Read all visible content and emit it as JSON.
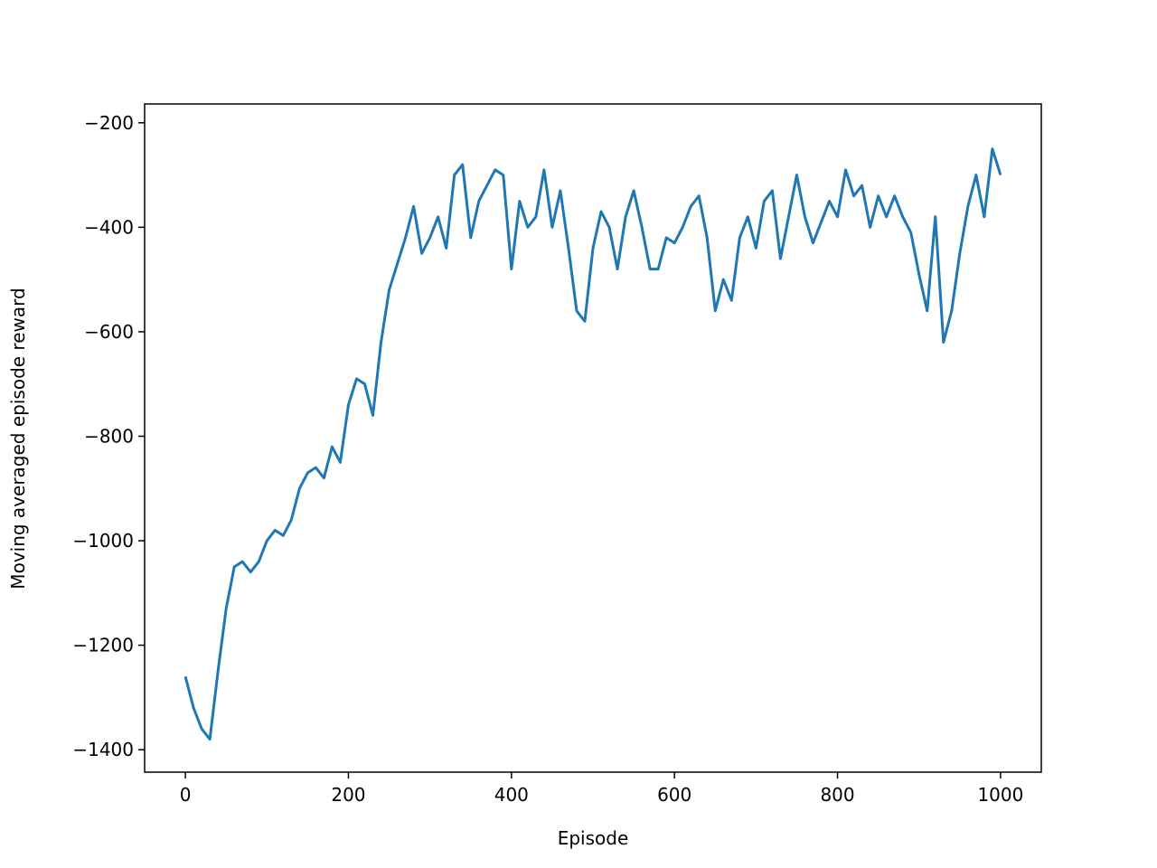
{
  "chart_data": {
    "type": "line",
    "x_label": "Episode",
    "y_label": "Moving averaged episode reward",
    "x": [
      0,
      10,
      20,
      30,
      40,
      50,
      60,
      70,
      80,
      90,
      100,
      110,
      120,
      130,
      140,
      150,
      160,
      170,
      180,
      190,
      200,
      210,
      220,
      230,
      240,
      250,
      260,
      270,
      280,
      290,
      300,
      310,
      320,
      330,
      340,
      350,
      360,
      370,
      380,
      390,
      400,
      410,
      420,
      430,
      440,
      450,
      460,
      470,
      480,
      490,
      500,
      510,
      520,
      530,
      540,
      550,
      560,
      570,
      580,
      590,
      600,
      610,
      620,
      630,
      640,
      650,
      660,
      670,
      680,
      690,
      700,
      710,
      720,
      730,
      740,
      750,
      760,
      770,
      780,
      790,
      800,
      810,
      820,
      830,
      840,
      850,
      860,
      870,
      880,
      890,
      900,
      910,
      920,
      930,
      940,
      950,
      960,
      970,
      980,
      990,
      1000
    ],
    "series": [
      {
        "name": "reward",
        "color": "#1f77b4",
        "values": [
          -1260,
          -1320,
          -1360,
          -1380,
          -1250,
          -1130,
          -1050,
          -1040,
          -1060,
          -1040,
          -1000,
          -980,
          -990,
          -960,
          -900,
          -870,
          -860,
          -880,
          -820,
          -850,
          -740,
          -690,
          -700,
          -760,
          -620,
          -520,
          -470,
          -420,
          -360,
          -450,
          -420,
          -380,
          -440,
          -300,
          -280,
          -420,
          -350,
          -320,
          -290,
          -300,
          -480,
          -350,
          -400,
          -380,
          -290,
          -400,
          -330,
          -440,
          -560,
          -580,
          -440,
          -370,
          -400,
          -480,
          -380,
          -330,
          -400,
          -480,
          -480,
          -420,
          -430,
          -400,
          -360,
          -340,
          -420,
          -560,
          -500,
          -540,
          -420,
          -380,
          -440,
          -350,
          -330,
          -460,
          -380,
          -300,
          -380,
          -430,
          -390,
          -350,
          -380,
          -290,
          -340,
          -320,
          -400,
          -340,
          -380,
          -340,
          -380,
          -410,
          -490,
          -560,
          -380,
          -620,
          -560,
          -450,
          -360,
          -300,
          -380,
          -250,
          -300
        ]
      }
    ],
    "xlim": [
      -50,
      1050
    ],
    "ylim": [
      -1443,
      -164
    ],
    "xticks": [
      0,
      200,
      400,
      600,
      800,
      1000
    ],
    "yticks": [
      {
        "value": -1400,
        "label": "−1400"
      },
      {
        "value": -1200,
        "label": "−1200"
      },
      {
        "value": -1000,
        "label": "−1000"
      },
      {
        "value": -800,
        "label": "−800"
      },
      {
        "value": -600,
        "label": "−600"
      },
      {
        "value": -400,
        "label": "−400"
      },
      {
        "value": -200,
        "label": "−200"
      }
    ]
  }
}
